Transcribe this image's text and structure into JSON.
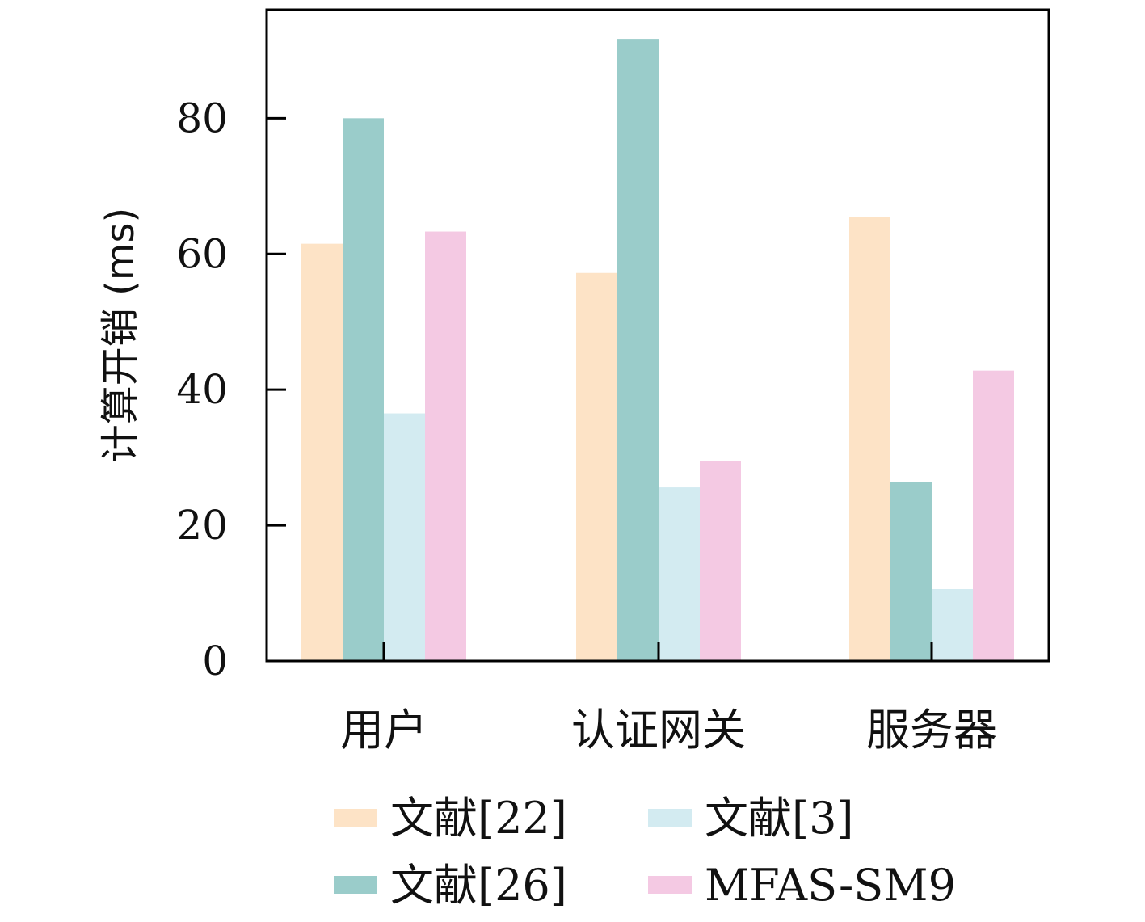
{
  "chart_data": {
    "type": "bar",
    "title": "",
    "xlabel": "",
    "ylabel": "计算开销 (ms)",
    "ylim": [
      0,
      96
    ],
    "yticks": [
      0,
      20,
      40,
      60,
      80
    ],
    "grid": false,
    "legend_position": "bottom",
    "categories": [
      "用户",
      "认证网关",
      "服务器"
    ],
    "series": [
      {
        "name": "文献[22]",
        "color": "#fde3c6",
        "values": [
          61.5,
          57.2,
          65.5
        ]
      },
      {
        "name": "文献[26]",
        "color": "#9accca",
        "values": [
          80.0,
          91.7,
          26.4
        ]
      },
      {
        "name": "文献[3]",
        "color": "#d3ebf1",
        "values": [
          36.5,
          25.6,
          10.6
        ]
      },
      {
        "name": "MFAS-SM9",
        "color": "#f4c9e3",
        "values": [
          63.3,
          29.5,
          42.8
        ]
      }
    ]
  }
}
